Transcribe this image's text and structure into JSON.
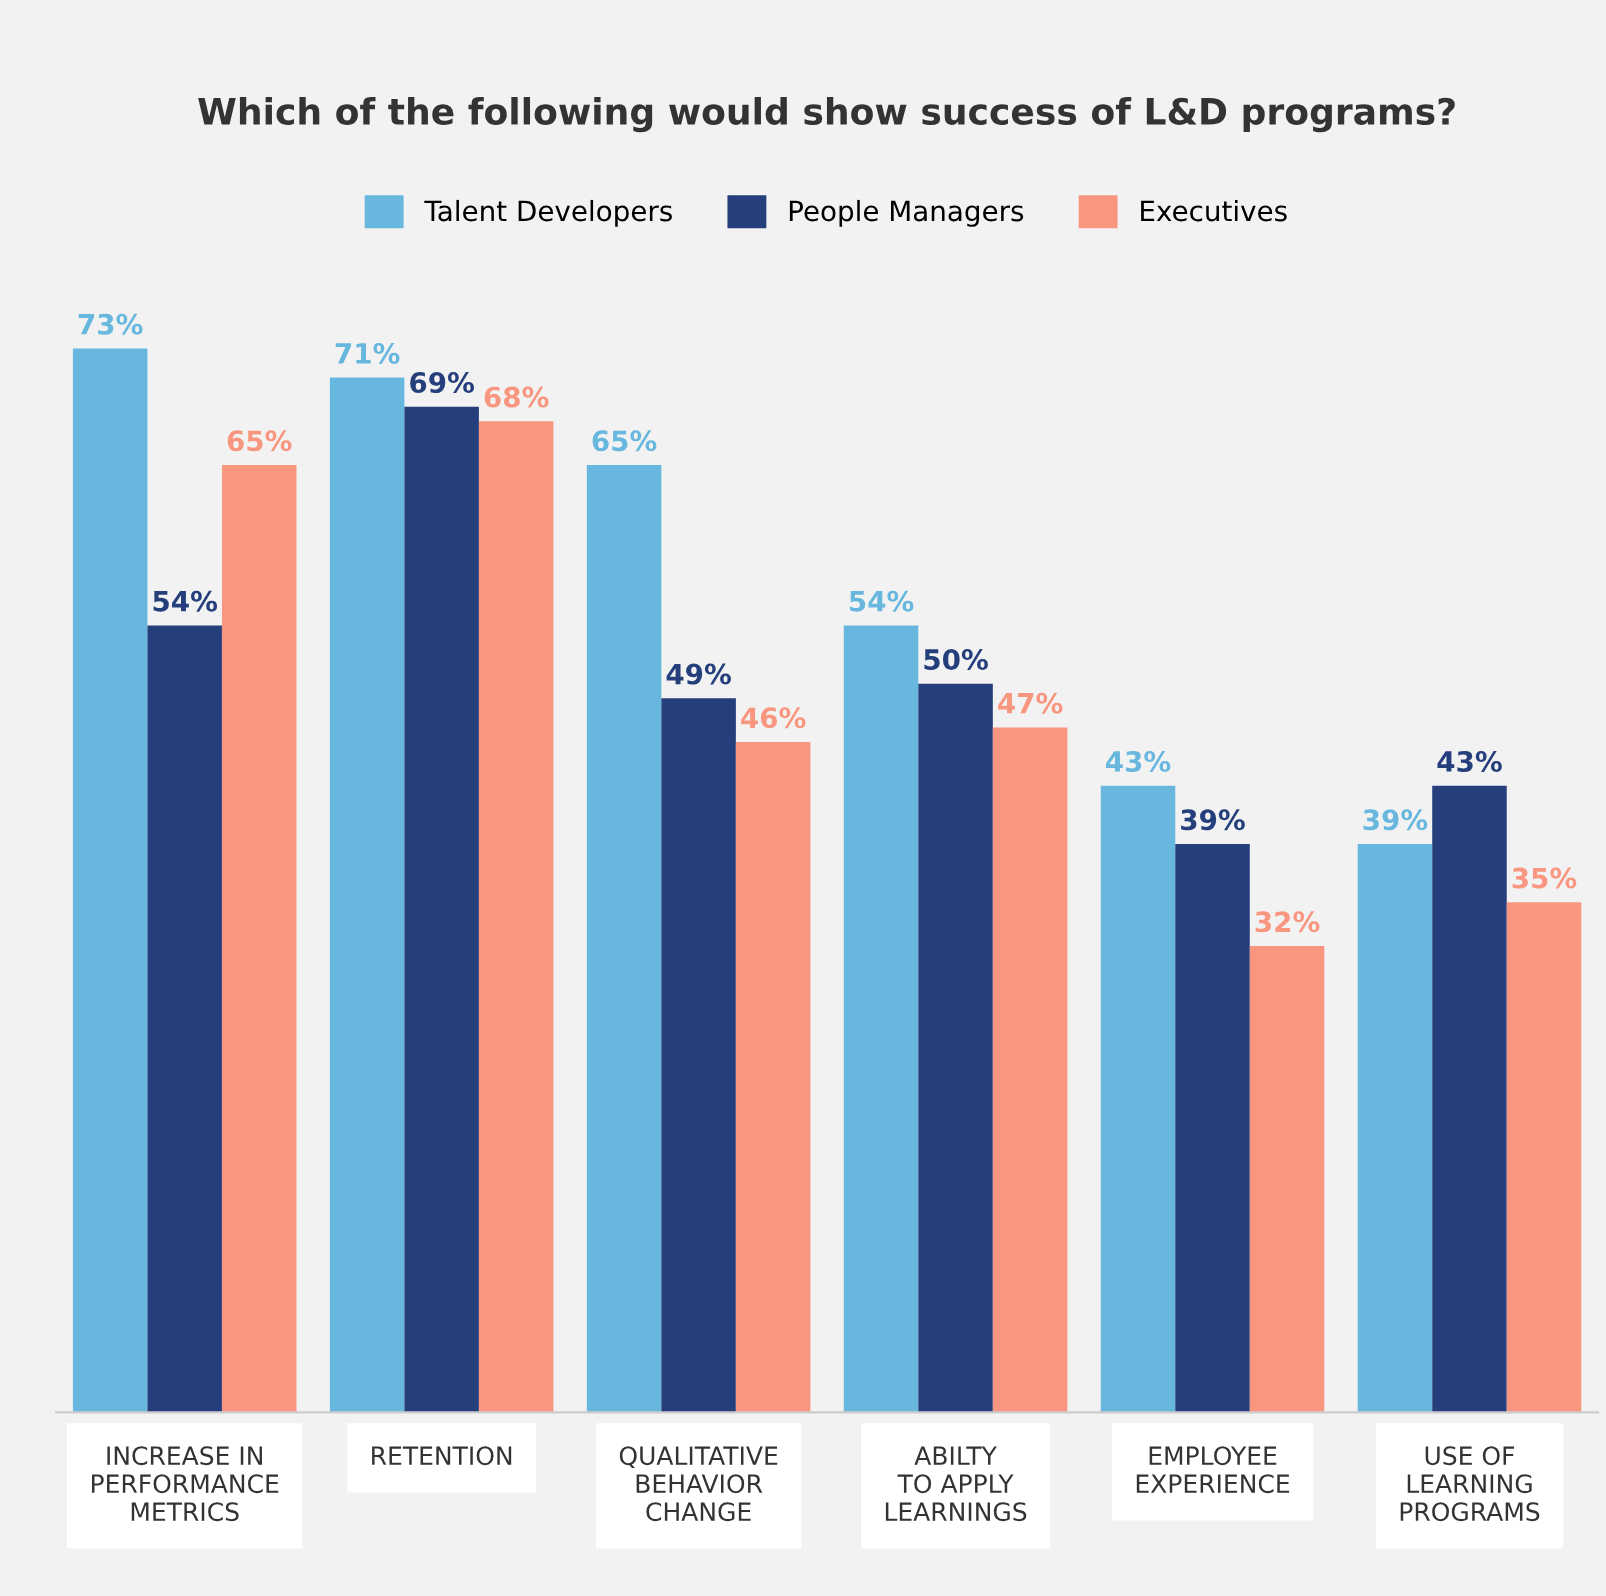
{
  "chart_data": {
    "type": "bar",
    "title": "Which of the following would show success of L&D programs?",
    "categories": [
      "INCREASE IN\nPERFORMANCE\nMETRICS",
      "RETENTION",
      "QUALITATIVE\nBEHAVIOR\nCHANGE",
      "ABILTY\nTO APPLY\nLEARNINGS",
      "EMPLOYEE\nEXPERIENCE",
      "USE OF\nLEARNING\nPROGRAMS"
    ],
    "series": [
      {
        "name": "Talent Developers",
        "color": "#68b7df",
        "values": [
          73,
          71,
          65,
          54,
          43,
          39
        ],
        "value_labels": [
          "73%",
          "71%",
          "65%",
          "54%",
          "43%",
          "39%"
        ]
      },
      {
        "name": "People Managers",
        "color": "#243f7b",
        "values": [
          54,
          69,
          49,
          50,
          39,
          43
        ],
        "value_labels": [
          "54%",
          "69%",
          "49%",
          "50%",
          "39%",
          "43%"
        ]
      },
      {
        "name": "Executives",
        "color": "#f9967f",
        "values": [
          65,
          68,
          46,
          47,
          32,
          35
        ],
        "value_labels": [
          "65%",
          "68%",
          "46%",
          "47%",
          "32%",
          "35%"
        ]
      }
    ],
    "legend": "top",
    "tick_labels": "x"
  }
}
